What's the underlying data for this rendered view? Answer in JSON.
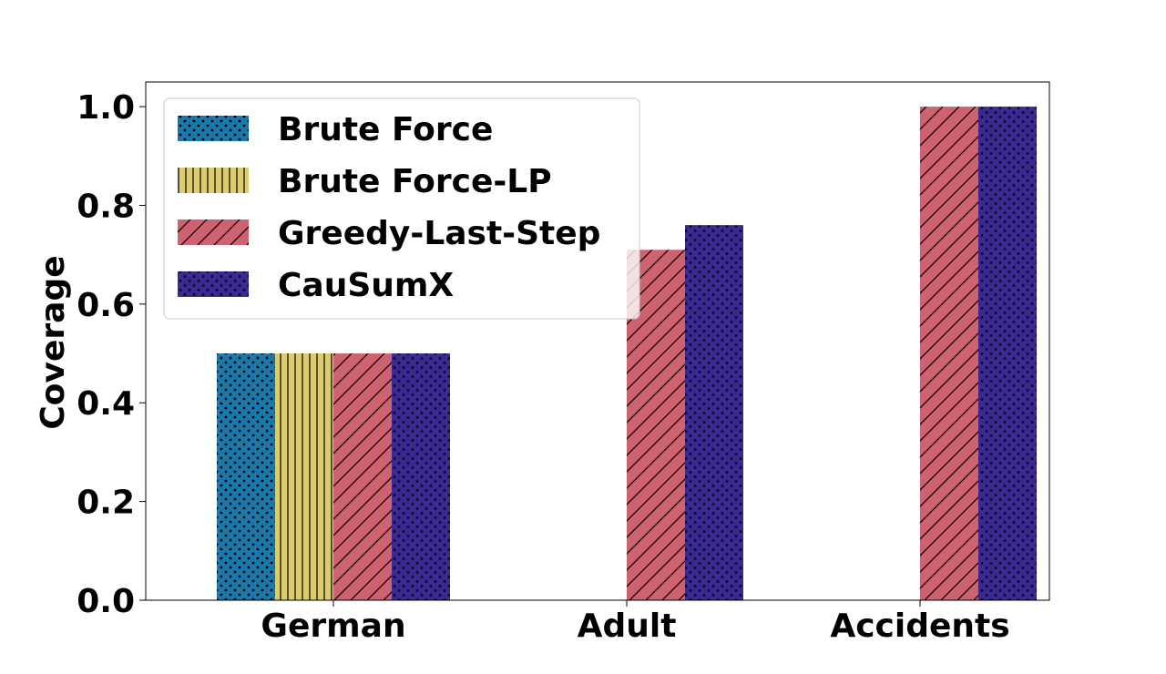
{
  "chart_data": {
    "type": "bar",
    "categories": [
      "German",
      "Adult",
      "Accidents"
    ],
    "ylabel": "Coverage",
    "xlabel": "",
    "ylim": [
      0,
      1.05
    ],
    "yticks": [
      0.0,
      0.2,
      0.4,
      0.6,
      0.8,
      1.0
    ],
    "ytick_labels": [
      "0.0",
      "0.2",
      "0.4",
      "0.6",
      "0.8",
      "1.0"
    ],
    "legend_position": "upper-left",
    "grid": false,
    "series": [
      {
        "name": "Brute Force",
        "values": [
          0.5,
          null,
          null
        ],
        "color": "#1a78aa",
        "hatch": "dots"
      },
      {
        "name": "Brute Force-LP",
        "values": [
          0.5,
          null,
          null
        ],
        "color": "#dccb6f",
        "hatch": "vertical-lines"
      },
      {
        "name": "Greedy-Last-Step",
        "values": [
          0.5,
          0.71,
          1.0
        ],
        "color": "#cd6371",
        "hatch": "diagonal-lines"
      },
      {
        "name": "CauSumX",
        "values": [
          0.5,
          0.76,
          1.0
        ],
        "color": "#3b2a93",
        "hatch": "stars"
      }
    ]
  }
}
